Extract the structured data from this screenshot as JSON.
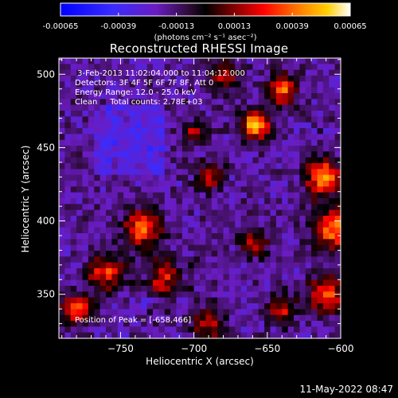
{
  "colorbar": {
    "ticks": [
      "-0.00065",
      "-0.00039",
      "-0.00013",
      "0.00013",
      "0.00039",
      "0.00065"
    ],
    "units": "(photons cm⁻² s⁻¹ asec⁻²)",
    "min": -0.00065,
    "max": 0.00065
  },
  "chart_data": {
    "type": "heatmap",
    "title": "Reconstructed RHESSI Image",
    "xlabel": "Heliocentric X (arcsec)",
    "ylabel": "Heliocentric Y (arcsec)",
    "xlim": [
      -792,
      -600
    ],
    "ylim": [
      320,
      511
    ],
    "xticks": [
      -750,
      -700,
      -650,
      -600
    ],
    "yticks": [
      350,
      400,
      450,
      500
    ],
    "xtick_labels": [
      "−750",
      "−700",
      "−650",
      "−600"
    ],
    "ytick_labels": [
      "350",
      "400",
      "450",
      "500"
    ],
    "peak": {
      "x": -658,
      "y": 466
    },
    "annotations": {
      "time": " 3-Feb-2013 11:02:04.000 to 11:04:12.000",
      "detectors": "Detectors: 3F 4F 5F 6F 7F 8F, Att 0",
      "energy": "Energy Range: 12.0 - 25.0 keV",
      "clean": "Clean     Total counts: 2.78E+03",
      "peak_text": "Position of Peak = [-658,466]"
    }
  },
  "timestamp": "11-May-2022 08:47"
}
